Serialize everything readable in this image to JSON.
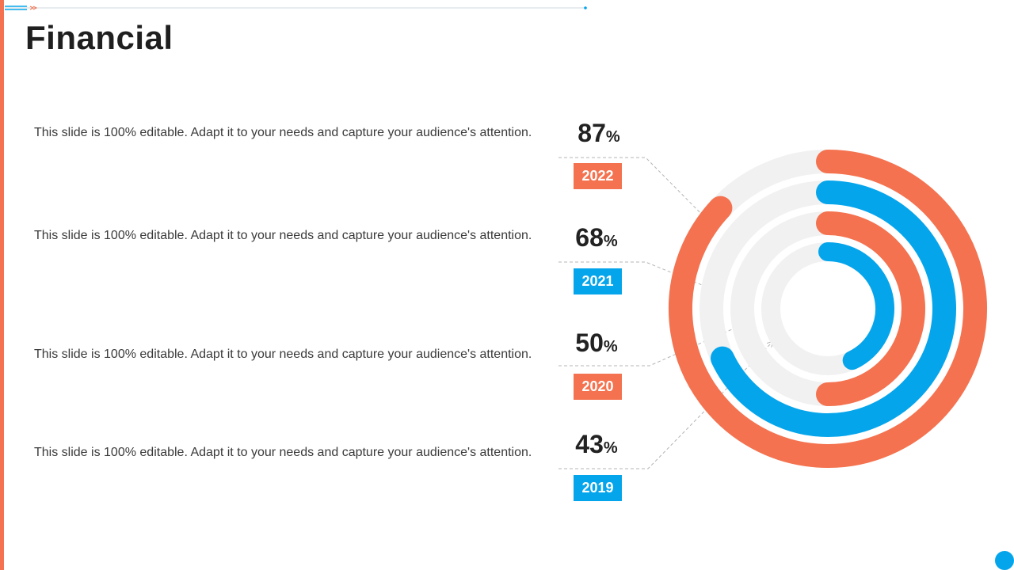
{
  "title": "Financial",
  "colors": {
    "accent_orange": "#f4724f",
    "accent_blue": "#05a5ec",
    "track": "#f1f1f1"
  },
  "items": [
    {
      "description": "This slide is 100% editable. Adapt it to your needs and capture your audience's attention.",
      "percent": "87",
      "percent_symbol": "%",
      "year": "2022",
      "color": "#f4724f"
    },
    {
      "description": "This slide is 100% editable. Adapt it to your needs and capture your audience's attention.",
      "percent": "68",
      "percent_symbol": "%",
      "year": "2021",
      "color": "#05a5ec"
    },
    {
      "description": "This slide is 100% editable. Adapt it to your needs and capture your audience's attention.",
      "percent": "50",
      "percent_symbol": "%",
      "year": "2020",
      "color": "#f4724f"
    },
    {
      "description": "This slide is 100% editable. Adapt it to your needs and capture your audience's attention.",
      "percent": "43",
      "percent_symbol": "%",
      "year": "2019",
      "color": "#05a5ec"
    }
  ],
  "chart_data": {
    "type": "radial-bar",
    "categories": [
      "2022",
      "2021",
      "2020",
      "2019"
    ],
    "values": [
      87,
      68,
      50,
      43
    ],
    "value_unit": "%",
    "max": 100,
    "colors": [
      "#f4724f",
      "#05a5ec",
      "#f4724f",
      "#05a5ec"
    ]
  }
}
